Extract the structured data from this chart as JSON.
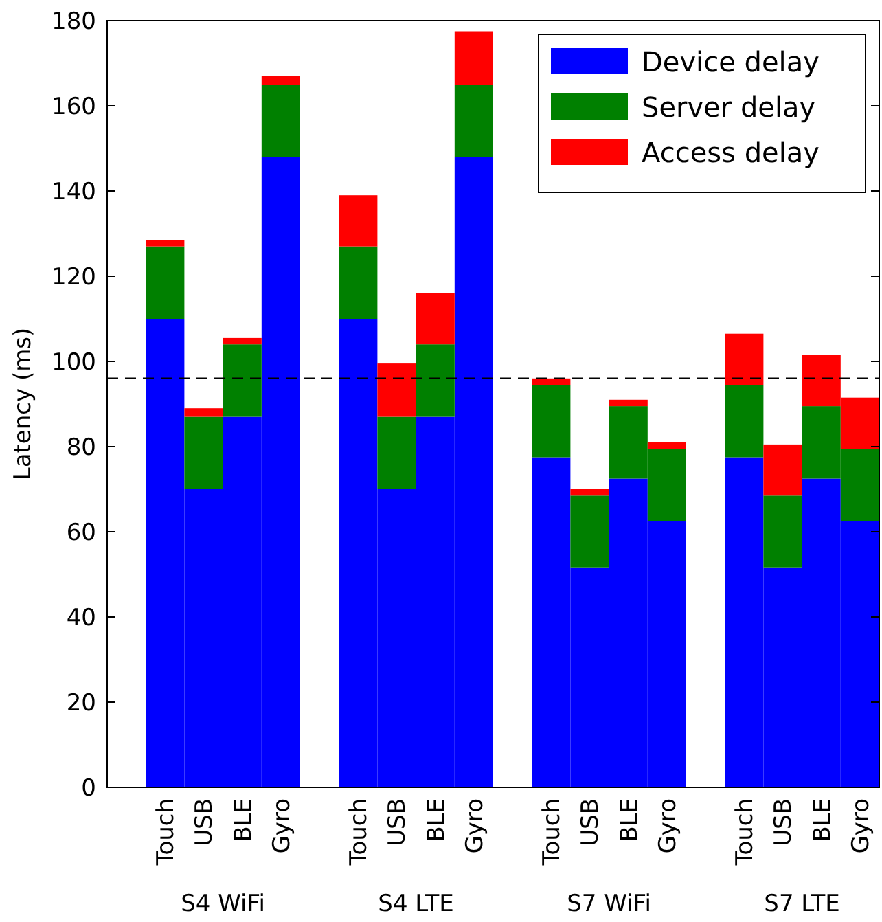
{
  "chart_data": {
    "type": "bar",
    "stacked": true,
    "ylabel": "Latency (ms)",
    "categories": [
      null,
      "Touch",
      "USB",
      "BLE",
      "Gyro",
      null,
      "Touch",
      "USB",
      "BLE",
      "Gyro",
      null,
      "Touch",
      "USB",
      "BLE",
      "Gyro",
      null,
      "Touch",
      "USB",
      "BLE",
      "Gyro"
    ],
    "series": [
      {
        "name": "Device delay",
        "color": "#0000ff",
        "values": [
          null,
          110,
          70,
          87,
          148,
          null,
          110,
          70,
          87,
          148,
          null,
          77.5,
          51.5,
          72.5,
          62.5,
          null,
          77.5,
          51.5,
          72.5,
          62.5
        ]
      },
      {
        "name": "Server delay",
        "color": "#008000",
        "values": [
          null,
          17,
          17,
          17,
          17,
          null,
          17,
          17,
          17,
          17,
          null,
          17,
          17,
          17,
          17,
          null,
          17,
          17,
          17,
          17
        ]
      },
      {
        "name": "Access delay",
        "color": "#ff0000",
        "values": [
          null,
          1.5,
          2,
          1.5,
          2,
          null,
          12,
          12.5,
          12,
          12.5,
          null,
          1.5,
          1.5,
          1.5,
          1.5,
          null,
          12,
          12,
          12,
          12
        ]
      }
    ],
    "annotations": [
      "S4 WiFi",
      "S4 LTE",
      "S7 WiFi",
      "S7 LTE"
    ],
    "ref_lines": [
      {
        "axis": "y",
        "value": 96,
        "color": "#000000",
        "line_style": "dashed"
      }
    ],
    "ylim": [
      0,
      180
    ],
    "yticks": [
      0,
      20,
      40,
      60,
      80,
      100,
      120,
      140,
      160,
      180
    ],
    "legend": "top right",
    "grid": false
  }
}
